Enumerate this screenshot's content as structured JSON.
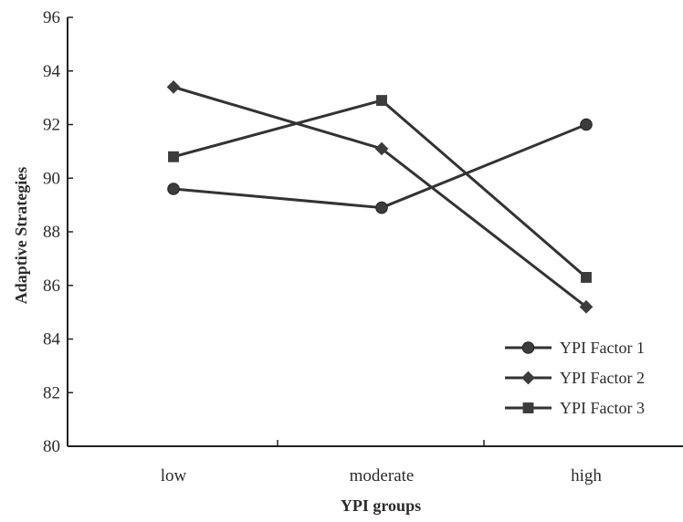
{
  "chart_data": {
    "type": "line",
    "title": "",
    "xlabel": "YPI groups",
    "ylabel": "Adaptive Strategies",
    "categories": [
      "low",
      "moderate",
      "high"
    ],
    "ylim": [
      80,
      96
    ],
    "yticks": [
      80,
      82,
      84,
      86,
      88,
      90,
      92,
      94,
      96
    ],
    "grid": false,
    "legend_position": "bottom-right",
    "series": [
      {
        "name": "YPI Factor 1",
        "marker": "circle",
        "values": [
          89.6,
          88.9,
          92.0
        ]
      },
      {
        "name": "YPI Factor 2",
        "marker": "diamond",
        "values": [
          93.4,
          91.1,
          85.2
        ]
      },
      {
        "name": "YPI Factor 3",
        "marker": "square",
        "values": [
          90.8,
          92.9,
          86.3
        ]
      }
    ],
    "colors": {
      "line": "#333333",
      "marker": "#3c3c3c",
      "axis": "#222222"
    }
  }
}
